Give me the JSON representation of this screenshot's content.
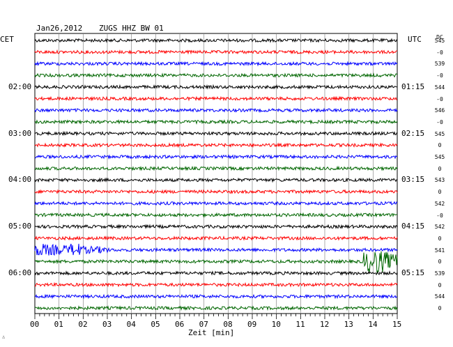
{
  "header": {
    "date": "Jan26,2012",
    "station": "ZUGS HHZ BW 01",
    "left_tz": "CET",
    "right_tz": "UTC",
    "dc": "DC"
  },
  "left_hours": [
    "02:00",
    "03:00",
    "04:00",
    "05:00",
    "06:00"
  ],
  "right_hours": [
    "01:15",
    "02:15",
    "03:15",
    "04:15",
    "05:15"
  ],
  "dc_values": [
    "545",
    "-0",
    "539",
    "-0",
    "544",
    "-0",
    "546",
    "-0",
    "545",
    "0",
    "545",
    "0",
    "543",
    "0",
    "542",
    "-0",
    "542",
    "0",
    "541",
    "0",
    "539",
    "0",
    "544",
    "0"
  ],
  "x_axis": {
    "ticks": [
      "00",
      "01",
      "02",
      "03",
      "04",
      "05",
      "06",
      "07",
      "08",
      "09",
      "10",
      "11",
      "12",
      "13",
      "14",
      "15"
    ],
    "label": "Zeit [min]"
  },
  "colors": {
    "traces": [
      "#000000",
      "#ff0000",
      "#0000ff",
      "#006600"
    ],
    "grid": "#888888"
  },
  "events": [
    {
      "trace": 19,
      "start_min": 13.6,
      "end_min": 15.0,
      "peak_min": 14.1,
      "type": "burst"
    },
    {
      "trace": 18,
      "start_min": 0.0,
      "end_min": 3.0,
      "peak_min": 1.7,
      "type": "decay"
    }
  ]
}
